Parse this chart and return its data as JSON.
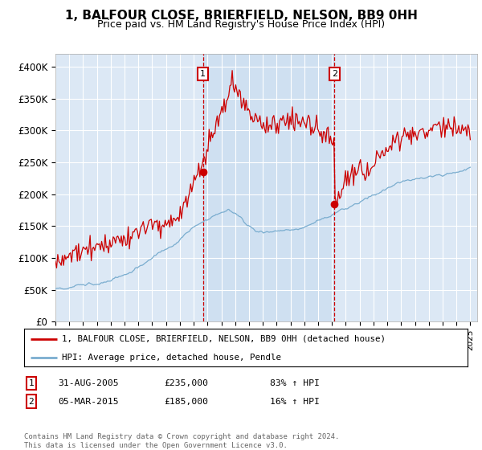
{
  "title": "1, BALFOUR CLOSE, BRIERFIELD, NELSON, BB9 0HH",
  "subtitle": "Price paid vs. HM Land Registry's House Price Index (HPI)",
  "ylim": [
    0,
    420000
  ],
  "yticks": [
    0,
    50000,
    100000,
    150000,
    200000,
    250000,
    300000,
    350000,
    400000
  ],
  "ytick_labels": [
    "£0",
    "£50K",
    "£100K",
    "£150K",
    "£200K",
    "£250K",
    "£300K",
    "£350K",
    "£400K"
  ],
  "background_color": "#ffffff",
  "plot_bg_color": "#dce8f5",
  "shade_color": "#ccdff0",
  "grid_color": "#ffffff",
  "sale1_date": 2005.67,
  "sale1_price": 235000,
  "sale2_date": 2015.17,
  "sale2_price": 185000,
  "red_line_color": "#cc0000",
  "blue_line_color": "#7aadcf",
  "legend_label_red": "1, BALFOUR CLOSE, BRIERFIELD, NELSON, BB9 0HH (detached house)",
  "legend_label_blue": "HPI: Average price, detached house, Pendle",
  "table_row1": [
    "1",
    "31-AUG-2005",
    "£235,000",
    "83% ↑ HPI"
  ],
  "table_row2": [
    "2",
    "05-MAR-2015",
    "£185,000",
    "16% ↑ HPI"
  ],
  "footnote": "Contains HM Land Registry data © Crown copyright and database right 2024.\nThis data is licensed under the Open Government Licence v3.0.",
  "xmin": 1995,
  "xmax": 2025.5
}
